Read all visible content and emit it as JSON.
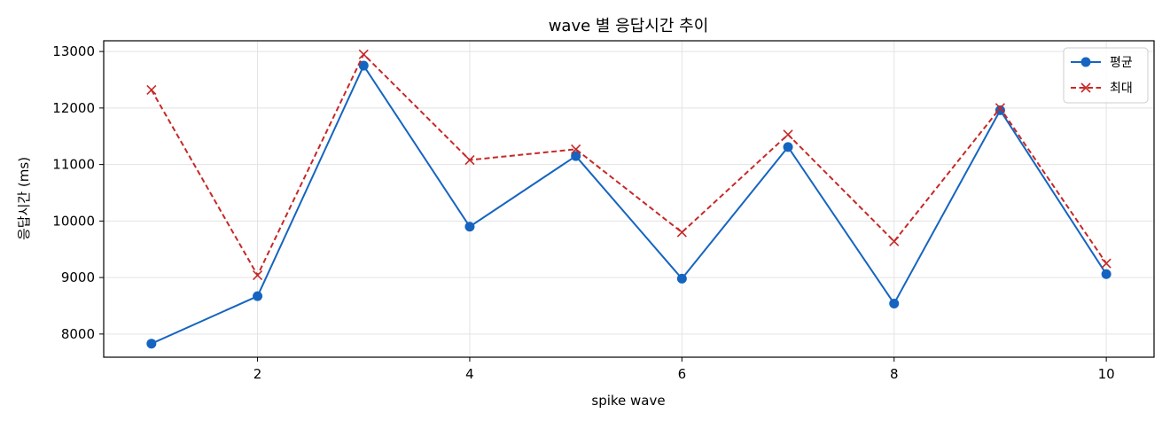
{
  "chart_data": {
    "type": "line",
    "title": "wave 별 응답시간 추이",
    "xlabel": "spike wave",
    "ylabel": "응답시간 (ms)",
    "xlim": [
      0.55,
      10.45
    ],
    "ylim": [
      7590,
      13190
    ],
    "xticks": [
      2,
      4,
      6,
      8,
      10
    ],
    "yticks": [
      8000,
      9000,
      10000,
      11000,
      12000,
      13000
    ],
    "grid": true,
    "legend_position": "top-right",
    "x": [
      1,
      2,
      3,
      4,
      5,
      6,
      7,
      8,
      9,
      10
    ],
    "series": [
      {
        "name": "평균",
        "values": [
          7830,
          8670,
          12750,
          9900,
          11150,
          8980,
          11310,
          8540,
          11960,
          9060
        ],
        "color": "#1565c0",
        "line_style": "solid",
        "marker": "circle"
      },
      {
        "name": "최대",
        "values": [
          12320,
          9040,
          12950,
          11080,
          11270,
          9800,
          11530,
          9640,
          12000,
          9250
        ],
        "color": "#c62828",
        "line_style": "dashed",
        "marker": "x"
      }
    ]
  }
}
